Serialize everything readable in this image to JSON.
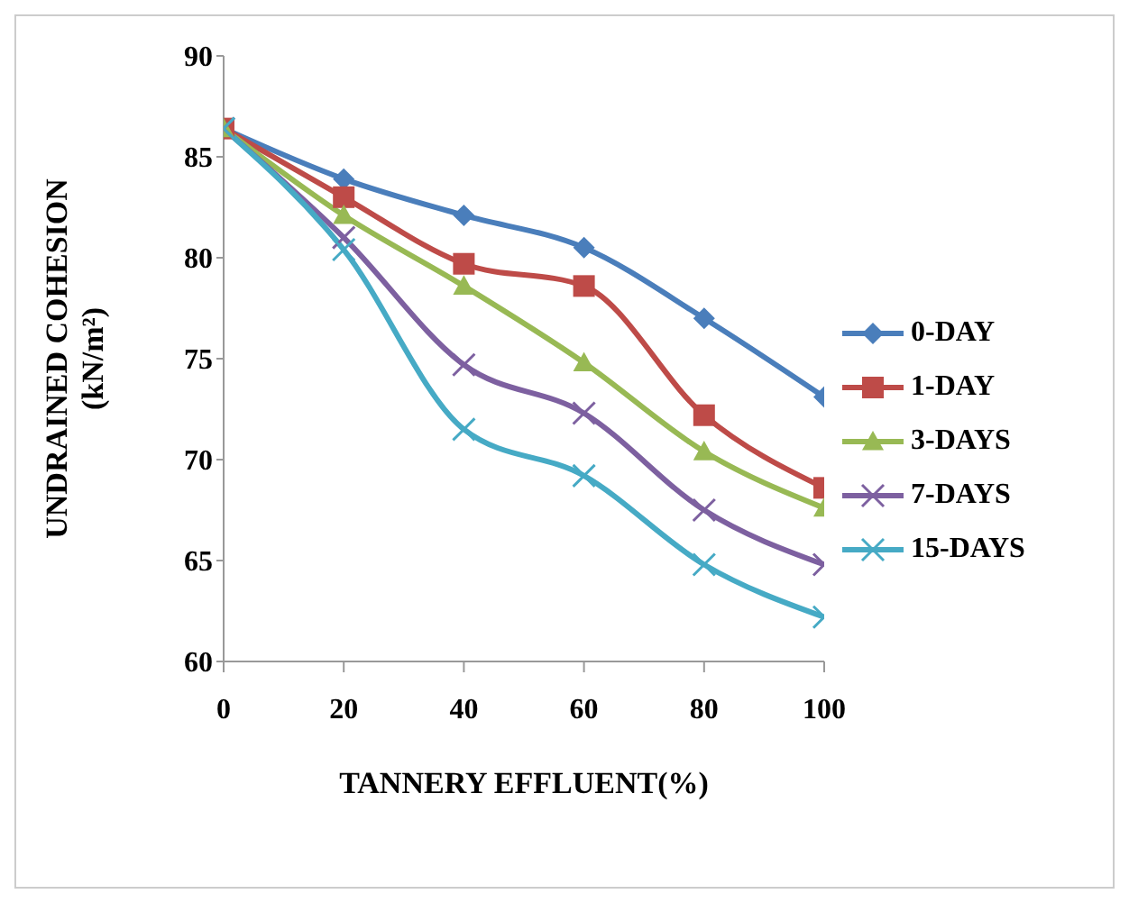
{
  "chart_data": {
    "type": "line",
    "xlabel": "TANNERY EFFLUENT(%)",
    "ylabel": "UNDRAINED COHESION (kN/m²)",
    "x": [
      0,
      20,
      40,
      60,
      80,
      100
    ],
    "xlim": [
      0,
      100
    ],
    "xticks": [
      0,
      20,
      40,
      60,
      80,
      100
    ],
    "ylim": [
      60,
      90
    ],
    "yticks": [
      60,
      65,
      70,
      75,
      80,
      85,
      90
    ],
    "grid": false,
    "legend": "right",
    "line_style": "solid",
    "series": [
      {
        "name": "0-DAY",
        "color": "#4a7ebb",
        "marker": "diamond",
        "values": [
          86.4,
          83.9,
          82.1,
          80.5,
          77.0,
          73.1
        ]
      },
      {
        "name": "1-DAY",
        "color": "#be4b48",
        "marker": "square",
        "values": [
          86.4,
          83.0,
          79.7,
          78.6,
          72.2,
          68.6
        ]
      },
      {
        "name": "3-DAYS",
        "color": "#98b954",
        "marker": "triangle",
        "values": [
          86.4,
          82.1,
          78.6,
          74.8,
          70.4,
          67.6
        ]
      },
      {
        "name": "7-DAYS",
        "color": "#7d60a0",
        "marker": "cross",
        "values": [
          86.4,
          81.0,
          74.7,
          72.3,
          67.5,
          64.8
        ]
      },
      {
        "name": "15-DAYS",
        "color": "#46aac5",
        "marker": "cross",
        "values": [
          86.4,
          80.4,
          71.5,
          69.2,
          64.8,
          62.2
        ]
      }
    ]
  }
}
